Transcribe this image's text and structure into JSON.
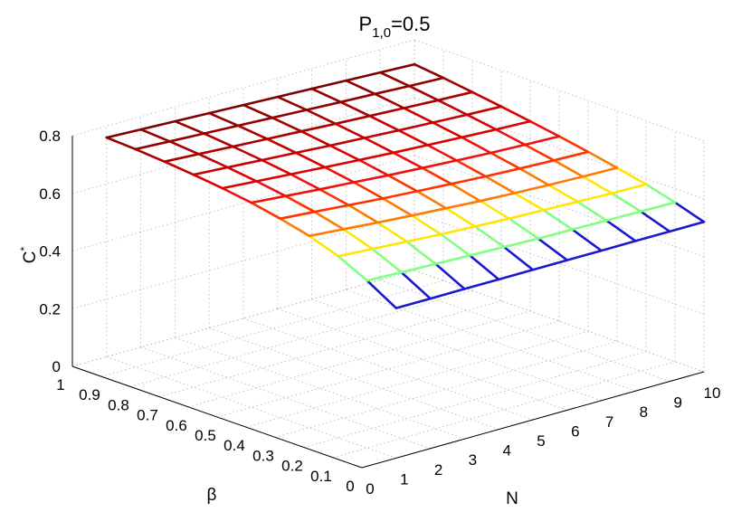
{
  "chart_data": {
    "type": "surface",
    "title": {
      "main": "P",
      "sub": "1,0",
      "rest": "=0.5"
    },
    "xlabel": "N",
    "ylabel": "β",
    "zlabel": {
      "main": "C",
      "sup": "*"
    },
    "x_ticks": [
      "0",
      "1",
      "2",
      "3",
      "4",
      "5",
      "6",
      "7",
      "8",
      "9",
      "10"
    ],
    "y_ticks": [
      "0",
      "0.1",
      "0.2",
      "0.3",
      "0.4",
      "0.5",
      "0.6",
      "0.7",
      "0.8",
      "0.9",
      "1"
    ],
    "z_ticks": [
      "0",
      "0.2",
      "0.4",
      "0.6",
      "0.8"
    ],
    "xlim": [
      0,
      10
    ],
    "ylim": [
      0,
      1
    ],
    "zlim": [
      0,
      0.8
    ],
    "grid": true,
    "colormap": "jet",
    "N_values": [
      1,
      2,
      3,
      4,
      5,
      6,
      7,
      8,
      9,
      10
    ],
    "beta_values": [
      0,
      0.1,
      0.2,
      0.3,
      0.4,
      0.5,
      0.6,
      0.7,
      0.8,
      0.9,
      1
    ],
    "surface_rows": [
      {
        "beta": 0,
        "C": [
          0.52,
          0.52,
          0.52,
          0.52,
          0.52,
          0.52,
          0.52,
          0.52,
          0.52,
          0.52
        ],
        "color": "#1a1acc"
      },
      {
        "beta": 0.1,
        "C": [
          0.58,
          0.576,
          0.572,
          0.568,
          0.564,
          0.56,
          0.558,
          0.556,
          0.554,
          0.552
        ],
        "color": "#80ff80"
      },
      {
        "beta": 0.2,
        "C": [
          0.63,
          0.622,
          0.614,
          0.606,
          0.6,
          0.594,
          0.59,
          0.586,
          0.582,
          0.58
        ],
        "color": "#ffe600"
      },
      {
        "beta": 0.3,
        "C": [
          0.665,
          0.655,
          0.645,
          0.636,
          0.628,
          0.62,
          0.614,
          0.609,
          0.605,
          0.602
        ],
        "color": "#ff7a00"
      },
      {
        "beta": 0.4,
        "C": [
          0.69,
          0.68,
          0.67,
          0.66,
          0.652,
          0.644,
          0.637,
          0.631,
          0.626,
          0.622
        ],
        "color": "#ff3300"
      },
      {
        "beta": 0.5,
        "C": [
          0.71,
          0.7,
          0.69,
          0.681,
          0.672,
          0.664,
          0.657,
          0.65,
          0.645,
          0.641
        ],
        "color": "#f01010"
      },
      {
        "beta": 0.6,
        "C": [
          0.725,
          0.716,
          0.707,
          0.698,
          0.69,
          0.682,
          0.675,
          0.669,
          0.663,
          0.658
        ],
        "color": "#dd0000"
      },
      {
        "beta": 0.7,
        "C": [
          0.737,
          0.729,
          0.721,
          0.713,
          0.705,
          0.698,
          0.691,
          0.685,
          0.679,
          0.674
        ],
        "color": "#c40000"
      },
      {
        "beta": 0.8,
        "C": [
          0.747,
          0.74,
          0.733,
          0.726,
          0.719,
          0.712,
          0.706,
          0.7,
          0.694,
          0.689
        ],
        "color": "#ab0000"
      },
      {
        "beta": 0.9,
        "C": [
          0.755,
          0.749,
          0.743,
          0.737,
          0.731,
          0.725,
          0.719,
          0.714,
          0.708,
          0.703
        ],
        "color": "#920000"
      },
      {
        "beta": 1,
        "C": [
          0.76,
          0.755,
          0.75,
          0.745,
          0.74,
          0.735,
          0.73,
          0.725,
          0.72,
          0.715
        ],
        "color": "#800000"
      }
    ],
    "colors": {
      "grid": "#b4b4b4",
      "axis": "#000000"
    }
  }
}
